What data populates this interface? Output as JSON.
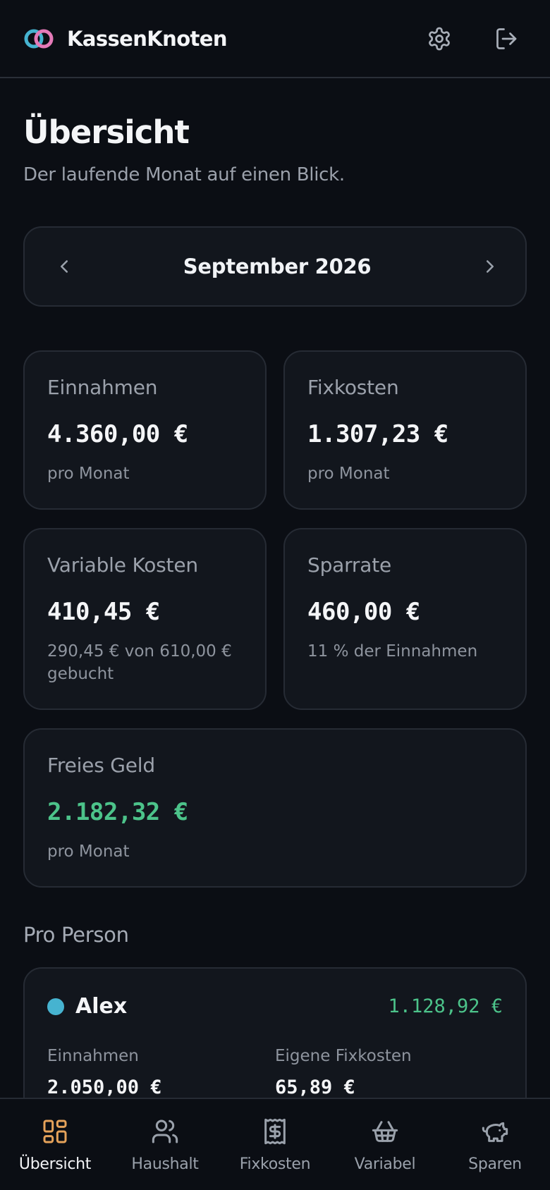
{
  "colors": {
    "background": "#0b0e14",
    "card": "#12161d",
    "accent_green": "#4cc38a",
    "accent_orange": "#e5a25a",
    "person_alex": "#46b3d0"
  },
  "header": {
    "brand": "KassenKnoten",
    "logo_icon": "linked-rings-logo",
    "settings_icon": "gear-icon",
    "logout_icon": "logout-icon"
  },
  "page": {
    "title": "Übersicht",
    "subtitle": "Der laufende Monat auf einen Blick."
  },
  "month_nav": {
    "label": "September 2026",
    "prev_icon": "chevron-left-icon",
    "next_icon": "chevron-right-icon"
  },
  "cards": {
    "income": {
      "label": "Einnahmen",
      "value": "4.360,00 €",
      "note": "pro Monat"
    },
    "fixed": {
      "label": "Fixkosten",
      "value": "1.307,23 €",
      "note": "pro Monat"
    },
    "variable": {
      "label": "Variable Kosten",
      "value": "410,45 €",
      "note": "290,45 € von 610,00 € gebucht"
    },
    "savings": {
      "label": "Sparrate",
      "value": "460,00 €",
      "note": "11 % der Einnahmen"
    },
    "free": {
      "label": "Freies Geld",
      "value": "2.182,32 €",
      "note": "pro Monat"
    }
  },
  "per_person": {
    "title": "Pro Person",
    "people": [
      {
        "name": "Alex",
        "free": "1.128,92 €",
        "income_label": "Einnahmen",
        "income_value": "2.050,00 €",
        "fixed_label": "Eigene Fixkosten",
        "fixed_value": "65,89 €"
      }
    ]
  },
  "bottom_nav": [
    {
      "label": "Übersicht",
      "icon": "dashboard-icon",
      "active": true
    },
    {
      "label": "Haushalt",
      "icon": "users-icon",
      "active": false
    },
    {
      "label": "Fixkosten",
      "icon": "receipt-icon",
      "active": false
    },
    {
      "label": "Variabel",
      "icon": "basket-icon",
      "active": false
    },
    {
      "label": "Sparen",
      "icon": "piggy-bank-icon",
      "active": false
    }
  ]
}
